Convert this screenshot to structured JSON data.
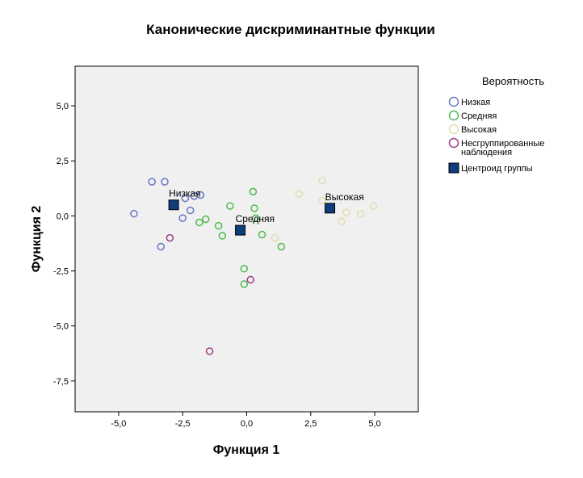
{
  "chart_data": {
    "type": "scatter",
    "title": "Канонические дискриминантные функции",
    "xlabel": "Функция 1",
    "ylabel": "Функция 2",
    "xlim": [
      -6.7,
      6.7
    ],
    "ylim": [
      -8.9,
      6.8
    ],
    "x_ticks": [
      -5,
      -2.5,
      0,
      2.5,
      5
    ],
    "x_tick_labels": [
      "-5,0",
      "-2,5",
      "0,0",
      "2,5",
      "5,0"
    ],
    "y_ticks": [
      5,
      2.5,
      0,
      -2.5,
      -5,
      -7.5
    ],
    "y_tick_labels": [
      "5,0",
      "2,5",
      "0,0",
      "-2,5",
      "-5,0",
      "-7,5"
    ],
    "grid": false,
    "legend": {
      "title": "Вероятность",
      "position": "right",
      "entries": [
        {
          "label": "Низкая",
          "marker": "circle",
          "color": "#6677c4"
        },
        {
          "label": "Средняя",
          "marker": "circle",
          "color": "#4cbc4c"
        },
        {
          "label": "Высокая",
          "marker": "circle",
          "color": "#e3ddb0"
        },
        {
          "label": "Несгруппированные наблюдения",
          "lines": [
            "Несгруппированные",
            "наблюдения"
          ],
          "marker": "circle",
          "color": "#9c3d86"
        },
        {
          "label": "Центроид группы",
          "marker": "square",
          "color": "#0d3d7a"
        }
      ]
    },
    "series": [
      {
        "name": "Низкая",
        "color": "#6677c4",
        "points": [
          [
            -3.7,
            1.55
          ],
          [
            -3.2,
            1.55
          ],
          [
            -4.4,
            0.1
          ],
          [
            -3.35,
            -1.4
          ],
          [
            -2.4,
            0.8
          ],
          [
            -2.05,
            0.9
          ],
          [
            -1.8,
            0.95
          ],
          [
            -2.2,
            0.25
          ],
          [
            -2.5,
            -0.1
          ]
        ]
      },
      {
        "name": "Средняя",
        "color": "#4cbc4c",
        "points": [
          [
            -0.65,
            0.45
          ],
          [
            0.25,
            1.1
          ],
          [
            0.3,
            0.35
          ],
          [
            -1.6,
            -0.15
          ],
          [
            -1.85,
            -0.3
          ],
          [
            -1.1,
            -0.45
          ],
          [
            -0.95,
            -0.9
          ],
          [
            0.35,
            -0.1
          ],
          [
            0.6,
            -0.85
          ],
          [
            1.35,
            -1.4
          ],
          [
            -0.1,
            -2.4
          ],
          [
            -0.1,
            -3.1
          ]
        ]
      },
      {
        "name": "Высокая",
        "color": "#e3ddb0",
        "points": [
          [
            2.05,
            1.0
          ],
          [
            2.95,
            1.6
          ],
          [
            2.95,
            0.7
          ],
          [
            3.9,
            0.15
          ],
          [
            4.45,
            0.1
          ],
          [
            4.95,
            0.45
          ],
          [
            3.7,
            -0.25
          ],
          [
            1.1,
            -1.0
          ]
        ]
      },
      {
        "name": "Несгруппированные наблюдения",
        "color": "#9c3d86",
        "points": [
          [
            -3.0,
            -1.0
          ],
          [
            0.15,
            -2.9
          ],
          [
            -1.45,
            -6.15
          ]
        ]
      }
    ],
    "centroids": [
      {
        "label": "Низкая",
        "x": -2.85,
        "y": 0.5
      },
      {
        "label": "Средняя",
        "x": -0.25,
        "y": -0.65
      },
      {
        "label": "Высокая",
        "x": 3.25,
        "y": 0.35
      }
    ]
  }
}
